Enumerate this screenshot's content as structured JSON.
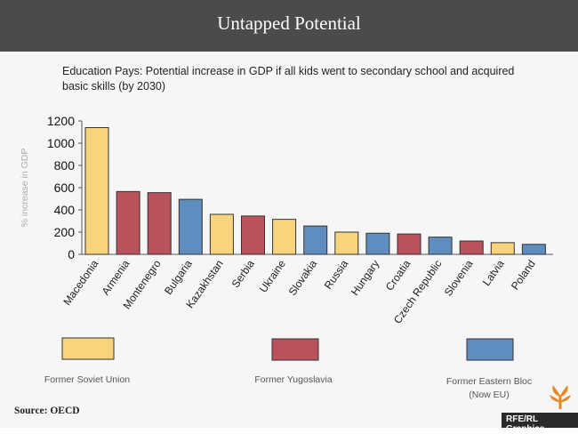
{
  "header": {
    "title": "Untapped Potential"
  },
  "chart_data": {
    "type": "bar",
    "title": "Education Pays: Potential increase in GDP if all kids went to secondary school and acquired basic skills (by 2030)",
    "ylabel": "% increase in GDP",
    "xlabel": "",
    "ylim": [
      0,
      1200
    ],
    "yticks": [
      0,
      200,
      400,
      600,
      800,
      1000,
      1200
    ],
    "grid": false,
    "categories": [
      "Macedonia",
      "Armenia",
      "Montenegro",
      "Bulgaria",
      "Kazakhstan",
      "Serbia",
      "Ukraine",
      "Slovakia",
      "Russia",
      "Hungary",
      "Croatia",
      "Czech Republic",
      "Slovenia",
      "Latvia",
      "Poland"
    ],
    "values": [
      1140,
      565,
      555,
      495,
      360,
      345,
      315,
      255,
      200,
      190,
      183,
      155,
      120,
      105,
      90
    ],
    "groups": [
      "Former Soviet Union",
      "Former Yugoslavia",
      "Former Yugoslavia",
      "Former Eastern Bloc (Now EU)",
      "Former Soviet Union",
      "Former Yugoslavia",
      "Former Soviet Union",
      "Former Eastern Bloc (Now EU)",
      "Former Soviet Union",
      "Former Eastern Bloc (Now EU)",
      "Former Yugoslavia",
      "Former Eastern Bloc (Now EU)",
      "Former Yugoslavia",
      "Former Soviet Union",
      "Former Eastern Bloc (Now EU)"
    ],
    "legend": [
      {
        "name": "Former Soviet Union",
        "color": "#f9d47c"
      },
      {
        "name": "Former Yugoslavia",
        "color": "#b9525b"
      },
      {
        "name": "Former Eastern Bloc (Now EU)",
        "color": "#5f8dbf"
      }
    ]
  },
  "legend_text": {
    "soviet": "Former Soviet Union",
    "yugo": "Former Yugoslavia",
    "eastern_line1": "Former Eastern Bloc",
    "eastern_line2": "(Now EU)"
  },
  "footer": {
    "source": "Source: OECD",
    "credit": "RFE/RL Graphics"
  },
  "colors": {
    "header_bg": "#4b4b4b",
    "page_bg": "#f6f6f6",
    "bar_stroke": "#333333",
    "logo": "#e8861e"
  },
  "icons": {
    "logo": "rfe-rl-flame-logo-icon"
  }
}
